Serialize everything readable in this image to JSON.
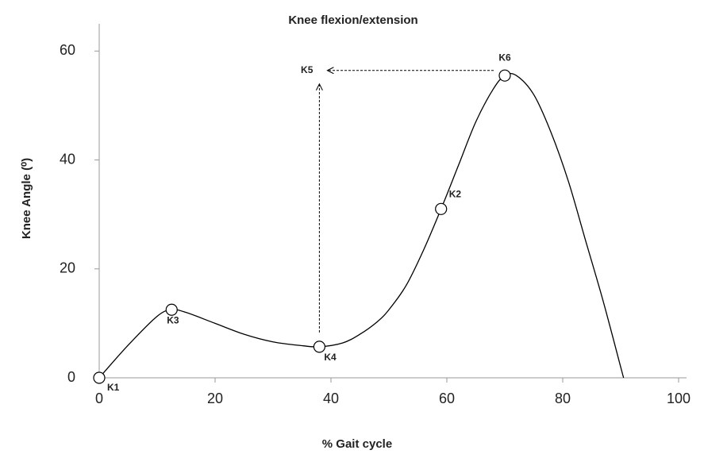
{
  "chart_data": {
    "type": "line",
    "title": "Knee flexion/extension",
    "xlabel": "% Gait cycle",
    "ylabel": "Knee Angle (⁰)",
    "x": [
      0,
      5,
      10,
      12.5,
      15,
      20,
      25,
      30,
      35,
      38,
      42,
      45,
      48,
      50,
      53,
      56,
      59,
      62,
      65,
      68,
      70,
      72,
      75,
      78,
      81,
      84,
      87,
      90,
      90.5
    ],
    "series": [
      {
        "name": "Knee angle",
        "color": "#000000",
        "values": [
          0,
          6,
          11.3,
          12.5,
          12,
          10,
          8,
          6.6,
          5.9,
          5.7,
          6.4,
          8,
          10.3,
          12.5,
          17,
          23.5,
          31,
          39,
          47,
          53,
          55.5,
          55.5,
          52,
          45,
          36,
          25,
          14,
          2,
          0
        ]
      }
    ],
    "annotations": [
      {
        "text": "K1",
        "x": 0,
        "y": 0
      },
      {
        "text": "K3",
        "x": 12.5,
        "y": 12.5
      },
      {
        "text": "K4",
        "x": 38,
        "y": 5.7
      },
      {
        "text": "K2",
        "x": 59,
        "y": 31
      },
      {
        "text": "K6",
        "x": 70,
        "y": 55.5
      },
      {
        "text": "K5",
        "x": 38,
        "y": 56
      }
    ],
    "xlim": [
      0,
      100
    ],
    "xticks": [
      0,
      20,
      40,
      60,
      80,
      100
    ],
    "ylim": [
      0,
      65
    ],
    "yticks": [
      0,
      20,
      40,
      60
    ]
  }
}
